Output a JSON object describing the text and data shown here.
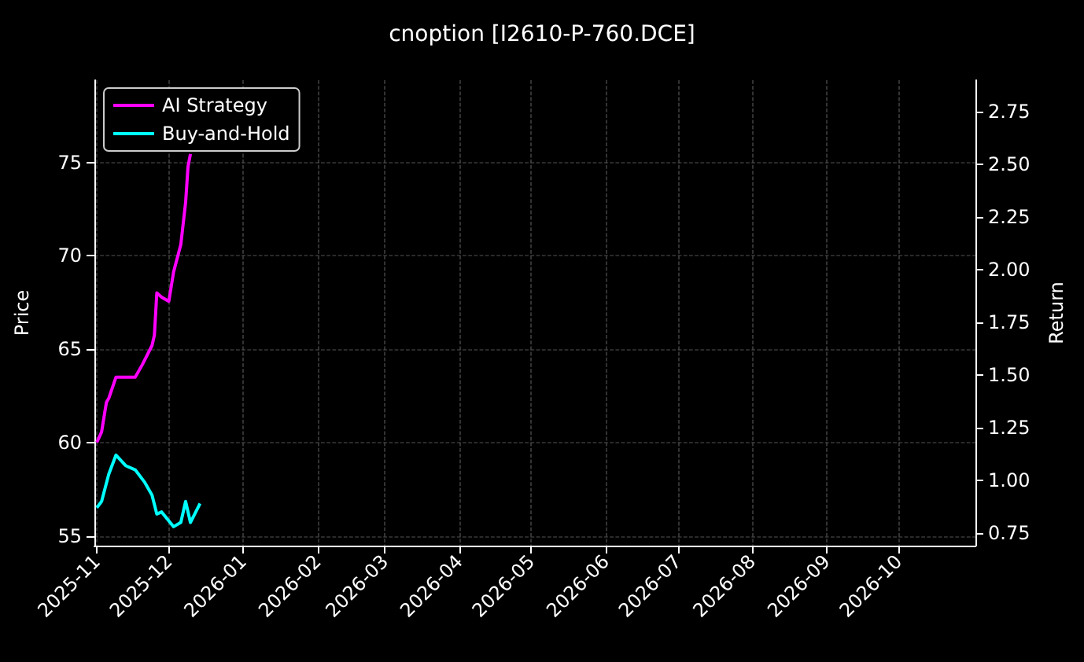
{
  "chart_data": {
    "type": "line",
    "title": "cnoption [I2610-P-760.DCE]",
    "ylabel": "Price",
    "y2label": "Return",
    "xlim": [
      "2025-10-31",
      "2026-11-02"
    ],
    "xticks": [
      "2025-11",
      "2025-12",
      "2026-01",
      "2026-02",
      "2026-03",
      "2026-04",
      "2026-05",
      "2026-06",
      "2026-07",
      "2026-08",
      "2026-09",
      "2026-10"
    ],
    "ylim": [
      54.5,
      79.4
    ],
    "yticks": [
      55,
      60,
      65,
      70,
      75
    ],
    "y2lim": [
      0.69,
      2.9
    ],
    "y2ticks": [
      {
        "value": 0.75,
        "label": "0.75"
      },
      {
        "value": 1,
        "label": "1.00"
      },
      {
        "value": 1.25,
        "label": "1.25"
      },
      {
        "value": 1.5,
        "label": "1.50"
      },
      {
        "value": 1.75,
        "label": "1.75"
      },
      {
        "value": 2,
        "label": "2.00"
      },
      {
        "value": 2.25,
        "label": "2.25"
      },
      {
        "value": 2.5,
        "label": "2.50"
      },
      {
        "value": 2.75,
        "label": "2.75"
      }
    ],
    "series": [
      {
        "name": "AI Strategy",
        "color": "#ff00ff",
        "axis": "y2",
        "x": [
          "2025-11-01",
          "2025-11-03",
          "2025-11-05",
          "2025-11-06",
          "2025-11-09",
          "2025-11-17",
          "2025-11-20",
          "2025-11-24",
          "2025-11-25",
          "2025-11-26",
          "2025-11-28",
          "2025-12-01",
          "2025-12-03",
          "2025-12-06",
          "2025-12-08",
          "2025-12-09",
          "2025-12-10"
        ],
        "values": [
          1.18,
          1.23,
          1.37,
          1.39,
          1.49,
          1.49,
          1.55,
          1.64,
          1.69,
          1.89,
          1.87,
          1.85,
          1.99,
          2.12,
          2.32,
          2.49,
          2.55
        ]
      },
      {
        "name": "Buy-and-Hold",
        "color": "#00ffff",
        "axis": "y2",
        "x": [
          "2025-11-01",
          "2025-11-03",
          "2025-11-06",
          "2025-11-09",
          "2025-11-13",
          "2025-11-17",
          "2025-11-21",
          "2025-11-24",
          "2025-11-26",
          "2025-11-28",
          "2025-12-03",
          "2025-12-06",
          "2025-12-08",
          "2025-12-10",
          "2025-12-14"
        ],
        "values": [
          0.87,
          0.9,
          1.03,
          1.12,
          1.07,
          1.05,
          0.99,
          0.93,
          0.84,
          0.85,
          0.78,
          0.8,
          0.9,
          0.8,
          0.89
        ]
      }
    ],
    "grid": true,
    "legend": "top left",
    "line_style": "solid",
    "marker": "none"
  }
}
